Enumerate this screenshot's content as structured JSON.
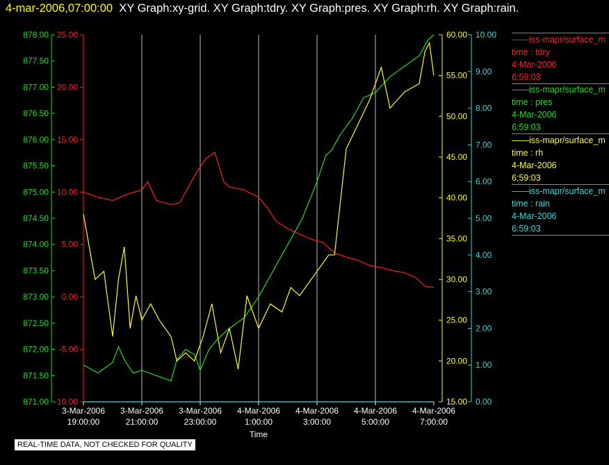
{
  "header": {
    "timestamp": "4-mar-2006,07:00:00",
    "titles": "XY Graph:xy-grid.  XY Graph:tdry.  XY Graph:pres.  XY Graph:rh.  XY Graph:rain."
  },
  "quality_note": "REAL-TIME DATA, NOT CHECKED FOR QUALITY",
  "colors": {
    "tdry": "#ff2020",
    "pres": "#22dd22",
    "rh": "#ffff20",
    "rain": "#33dddd",
    "grid": "#bbbbbb"
  },
  "legend": [
    {
      "source": "iss-mapr/surface_m",
      "var": "time : tdry",
      "date": "4-Mar-2006",
      "time": "6:59:03",
      "color": "#ff2020"
    },
    {
      "source": "iss-mapr/surface_m",
      "var": "time : pres",
      "date": "4-Mar-2006",
      "time": "6:59:03",
      "color": "#22dd22"
    },
    {
      "source": "iss-mapr/surface_m",
      "var": "time : rh",
      "date": "4-Mar-2006",
      "time": "6:59:03",
      "color": "#ffff20"
    },
    {
      "source": "iss-mapr/surface_m",
      "var": "time : rain",
      "date": "4-Mar-2006",
      "time": "6:59:03",
      "color": "#33dddd"
    }
  ],
  "chart_data": {
    "type": "line",
    "xlabel": "Time",
    "x_ticks": [
      {
        "l1": "3-Mar-2006",
        "l2": "19:00:00"
      },
      {
        "l1": "3-Mar-2006",
        "l2": "21:00:00"
      },
      {
        "l1": "3-Mar-2006",
        "l2": "23:00:00"
      },
      {
        "l1": "4-Mar-2006",
        "l2": "1:00:00"
      },
      {
        "l1": "4-Mar-2006",
        "l2": "3:00:00"
      },
      {
        "l1": "4-Mar-2006",
        "l2": "5:00:00"
      },
      {
        "l1": "4-Mar-2006",
        "l2": "7:00:00"
      }
    ],
    "xlim": [
      "3-Mar-2006 19:00:00",
      "4-Mar-2006 7:00:00"
    ],
    "axes": {
      "pres": {
        "ylim": [
          871.0,
          878.0
        ],
        "ticks": [
          "871.00",
          "871.50",
          "872.00",
          "872.50",
          "873.00",
          "873.50",
          "874.00",
          "874.50",
          "875.00",
          "875.50",
          "876.00",
          "876.50",
          "877.00",
          "877.50",
          "878.00"
        ]
      },
      "tdry": {
        "ylim": [
          -10.0,
          25.0
        ],
        "ticks": [
          "-10.00",
          "-5.00",
          "0.00",
          "5.00",
          "10.00",
          "15.00",
          "20.00",
          "25.00"
        ]
      },
      "rh": {
        "ylim": [
          15.0,
          60.0
        ],
        "ticks": [
          "15.00",
          "20.00",
          "25.00",
          "30.00",
          "35.00",
          "40.00",
          "45.00",
          "50.00",
          "55.00",
          "60.00"
        ]
      },
      "rain": {
        "ylim": [
          0.0,
          10.0
        ],
        "ticks": [
          "0.00",
          "1.00",
          "2.00",
          "3.00",
          "4.00",
          "5.00",
          "6.00",
          "7.00",
          "8.00",
          "9.00",
          "10.00"
        ]
      }
    },
    "series": [
      {
        "key": "tdry",
        "x_hours": [
          0,
          0.5,
          1,
          1.5,
          2,
          2.2,
          2.5,
          3,
          3.3,
          3.6,
          3.9,
          4.2,
          4.5,
          4.8,
          5.0,
          5.5,
          6,
          6.3,
          6.6,
          7,
          7.4,
          7.8,
          8.2,
          8.6,
          9,
          9.4,
          9.8,
          10.2,
          10.6,
          11,
          11.4,
          11.7,
          12
        ],
        "values": [
          10.0,
          9.5,
          9.2,
          9.8,
          10.2,
          11.0,
          9.2,
          8.8,
          9.0,
          10.5,
          12.0,
          13.2,
          13.8,
          11.0,
          10.5,
          10.2,
          9.5,
          8.5,
          7.2,
          6.5,
          6.0,
          5.5,
          5.2,
          4.2,
          3.8,
          3.5,
          3.0,
          2.8,
          2.5,
          2.3,
          1.8,
          1.0,
          0.9
        ]
      },
      {
        "key": "pres",
        "x_hours": [
          0,
          0.5,
          1,
          1.2,
          1.4,
          1.7,
          2,
          2.5,
          3,
          3.2,
          3.5,
          3.8,
          4.0,
          4.3,
          4.6,
          5.0,
          5.5,
          6,
          6.5,
          7,
          7.5,
          8,
          8.3,
          8.5,
          8.8,
          9.2,
          9.6,
          10,
          10.5,
          11,
          11.5,
          11.8,
          12
        ],
        "values": [
          871.7,
          871.55,
          871.75,
          872.05,
          871.8,
          871.55,
          871.6,
          871.5,
          871.4,
          871.8,
          872.0,
          871.9,
          871.6,
          872.0,
          872.2,
          872.4,
          872.6,
          873.0,
          873.5,
          874.0,
          874.5,
          875.2,
          875.7,
          875.8,
          876.1,
          876.4,
          876.8,
          876.9,
          877.2,
          877.4,
          877.6,
          877.9,
          878.0
        ]
      },
      {
        "key": "rh",
        "x_hours": [
          0,
          0.2,
          0.4,
          0.7,
          1.0,
          1.2,
          1.4,
          1.6,
          1.8,
          2.0,
          2.3,
          2.6,
          3.0,
          3.2,
          3.5,
          3.8,
          4.1,
          4.4,
          4.7,
          5.0,
          5.3,
          5.6,
          6.0,
          6.4,
          6.8,
          7.1,
          7.4,
          7.8,
          8.0,
          8.4,
          8.6,
          9,
          9.4,
          9.8,
          10.2,
          10.5,
          11,
          11.5,
          11.7,
          11.85,
          12
        ],
        "values": [
          38,
          34,
          30,
          31,
          23,
          30,
          34,
          24,
          28,
          25,
          27,
          25,
          23,
          20,
          21,
          20,
          23,
          27,
          21,
          24,
          19,
          28,
          24,
          27,
          26,
          29,
          28,
          30,
          31,
          33,
          33,
          46,
          49,
          52,
          56,
          51,
          53,
          54,
          58,
          59,
          55
        ]
      },
      {
        "key": "rain",
        "x_hours": [
          0,
          12
        ],
        "values": [
          0.0,
          0.0
        ]
      }
    ]
  }
}
